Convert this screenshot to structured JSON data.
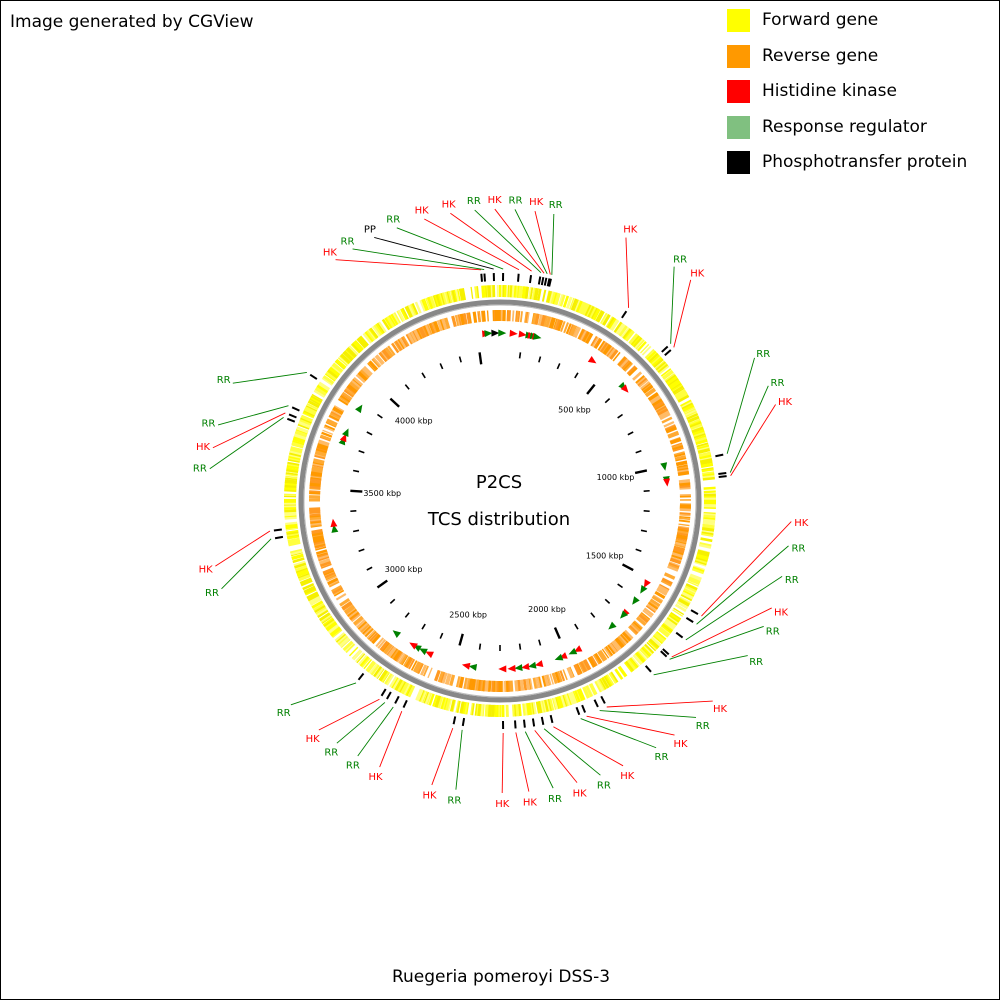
{
  "credit": "Image generated by CGView",
  "legend": [
    {
      "label": "Forward gene",
      "color": "#ffff00"
    },
    {
      "label": "Reverse gene",
      "color": "#ff9900"
    },
    {
      "label": "Histidine kinase",
      "color": "#ff0000"
    },
    {
      "label": "Response regulator",
      "color": "#80c080"
    },
    {
      "label": "Phosphotransfer protein",
      "color": "#000000"
    }
  ],
  "center": {
    "title": "P2CS",
    "subtitle": "TCS distribution"
  },
  "caption": "Ruegeria pomeroyi DSS-3",
  "genome": {
    "length_kbp": 4600,
    "tick_labels": [
      {
        "kbp": 500,
        "label": "500 kbp"
      },
      {
        "kbp": 1000,
        "label": "1000 kbp"
      },
      {
        "kbp": 1500,
        "label": "1500 kbp"
      },
      {
        "kbp": 2000,
        "label": "2000 kbp"
      },
      {
        "kbp": 2500,
        "label": "2500 kbp"
      },
      {
        "kbp": 3000,
        "label": "3000 kbp"
      },
      {
        "kbp": 3500,
        "label": "3500 kbp"
      },
      {
        "kbp": 4000,
        "label": "4000 kbp"
      }
    ],
    "colors": {
      "hk_label": "#ff0000",
      "rr_label": "#008000",
      "pp_label": "#000000",
      "hk_marker": "#ff0000",
      "rr_marker": "#008000",
      "pp_marker": "#000000",
      "ring": "#888888"
    }
  },
  "features": [
    {
      "type": "HK",
      "kbp": 4540
    },
    {
      "type": "PP",
      "kbp": 4580
    },
    {
      "type": "RR",
      "kbp": 10
    },
    {
      "type": "RR",
      "kbp": 4550
    },
    {
      "type": "HK",
      "kbp": 60
    },
    {
      "type": "HK",
      "kbp": 100
    },
    {
      "type": "RR",
      "kbp": 130
    },
    {
      "type": "HK",
      "kbp": 140
    },
    {
      "type": "RR",
      "kbp": 150
    },
    {
      "type": "HK",
      "kbp": 160
    },
    {
      "type": "RR",
      "kbp": 165
    },
    {
      "type": "HK",
      "kbp": 430
    },
    {
      "type": "RR",
      "kbp": 605
    },
    {
      "type": "HK",
      "kbp": 620
    },
    {
      "type": "RR",
      "kbp": 1000
    },
    {
      "type": "RR",
      "kbp": 1060
    },
    {
      "type": "HK",
      "kbp": 1070
    },
    {
      "type": "HK",
      "kbp": 1530
    },
    {
      "type": "RR",
      "kbp": 1560
    },
    {
      "type": "RR",
      "kbp": 1620
    },
    {
      "type": "HK",
      "kbp": 1690
    },
    {
      "type": "RR",
      "kbp": 1700
    },
    {
      "type": "RR",
      "kbp": 1770
    },
    {
      "type": "HK",
      "kbp": 1950
    },
    {
      "type": "RR",
      "kbp": 1975
    },
    {
      "type": "HK",
      "kbp": 2020
    },
    {
      "type": "RR",
      "kbp": 2040
    },
    {
      "type": "HK",
      "kbp": 2130
    },
    {
      "type": "RR",
      "kbp": 2160
    },
    {
      "type": "HK",
      "kbp": 2190
    },
    {
      "type": "RR",
      "kbp": 2220
    },
    {
      "type": "HK",
      "kbp": 2250
    },
    {
      "type": "HK",
      "kbp": 2290
    },
    {
      "type": "RR",
      "kbp": 2420
    },
    {
      "type": "HK",
      "kbp": 2450
    },
    {
      "type": "HK",
      "kbp": 2620
    },
    {
      "type": "RR",
      "kbp": 2650
    },
    {
      "type": "RR",
      "kbp": 2680
    },
    {
      "type": "HK",
      "kbp": 2700
    },
    {
      "type": "RR",
      "kbp": 2790
    },
    {
      "type": "RR",
      "kbp": 3330
    },
    {
      "type": "HK",
      "kbp": 3355
    },
    {
      "type": "RR",
      "kbp": 3720
    },
    {
      "type": "HK",
      "kbp": 3735
    },
    {
      "type": "RR",
      "kbp": 3760
    },
    {
      "type": "RR",
      "kbp": 3880
    }
  ]
}
